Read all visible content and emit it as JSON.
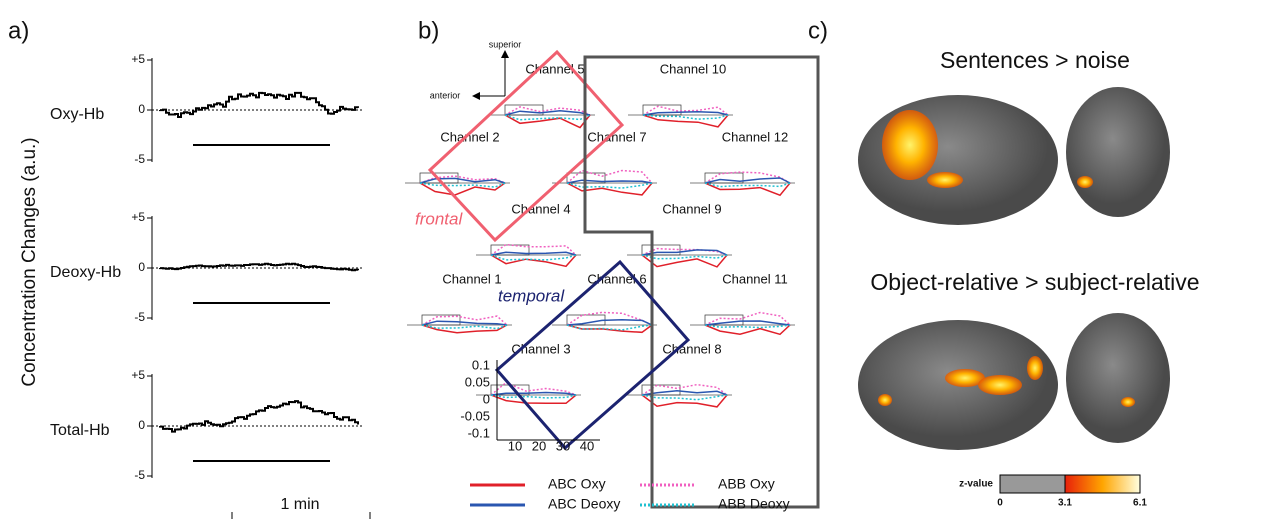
{
  "panel_a": {
    "label": "a)",
    "y_axis_label": "Concentration Changes (a.u.)",
    "rows": [
      {
        "label": "Oxy-Hb",
        "ticks": [
          "+5",
          "0",
          "-5"
        ]
      },
      {
        "label": "Deoxy-Hb",
        "ticks": [
          "+5",
          "0",
          "-5"
        ]
      },
      {
        "label": "Total-Hb",
        "ticks": [
          "+5",
          "0",
          "-5"
        ]
      }
    ],
    "scale_bar": "1 min"
  },
  "panel_b": {
    "label": "b)",
    "orientation": {
      "up": "superior",
      "left": "anterior"
    },
    "channels": [
      "Channel 5",
      "Channel 10",
      "Channel 2",
      "Channel 7",
      "Channel 12",
      "Channel 4",
      "Channel 9",
      "Channel 1",
      "Channel 6",
      "Channel 11",
      "Channel 3",
      "Channel 8"
    ],
    "regions": {
      "frontal": "frontal",
      "temporal": "temporal"
    },
    "example_axis": {
      "yticks": [
        "0.1",
        "0.05",
        "0",
        "-0.05",
        "-0.1"
      ],
      "xticks": [
        "10",
        "20",
        "30",
        "40"
      ]
    },
    "legend": [
      "ABC Oxy",
      "ABB Oxy",
      "ABC Deoxy",
      "ABB Deoxy"
    ]
  },
  "panel_c": {
    "label": "c)",
    "titles": [
      "Sentences > noise",
      "Object-relative > subject-relative"
    ],
    "colorbar": {
      "label": "z-value",
      "ticks": [
        "0",
        "3.1",
        "6.1"
      ]
    }
  }
}
